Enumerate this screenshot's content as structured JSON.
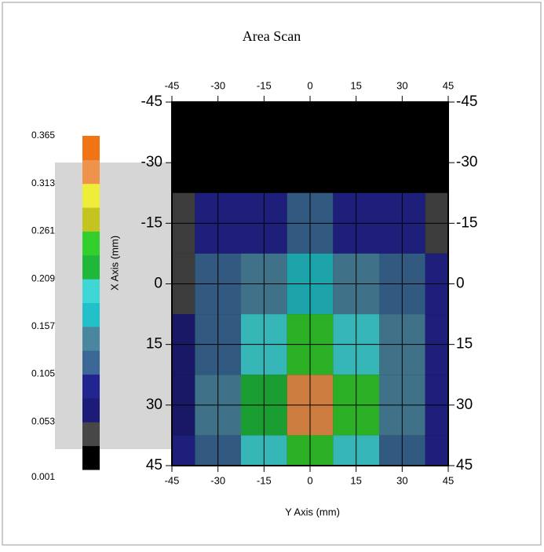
{
  "chart_data": {
    "type": "contour",
    "title": "Area Scan",
    "x_axis_label": "Y Axis (mm)",
    "y_axis_label": "X Axis (mm)",
    "xlim": [
      -45,
      45
    ],
    "xticks": [
      -45,
      -30,
      -15,
      0,
      15,
      30,
      45
    ],
    "ylim": [
      -45,
      45
    ],
    "yticks": [
      -45,
      -30,
      -15,
      0,
      15,
      30,
      45
    ],
    "y_inverted": true,
    "grid": true,
    "grid_x": [
      -45,
      -30,
      -15,
      0,
      15,
      30,
      45
    ],
    "grid_y": [
      -45,
      -30,
      -15,
      0,
      15,
      30,
      45
    ],
    "z": [
      [
        null,
        null,
        null,
        null,
        null,
        null,
        null
      ],
      [
        null,
        null,
        null,
        null,
        null,
        null,
        null
      ],
      [
        0.03,
        0.08,
        0.1,
        0.11,
        0.1,
        0.08,
        0.04
      ],
      [
        0.05,
        0.11,
        0.15,
        0.17,
        0.15,
        0.12,
        0.08
      ],
      [
        0.06,
        0.13,
        0.19,
        0.25,
        0.2,
        0.14,
        0.09
      ],
      [
        0.06,
        0.14,
        0.22,
        0.33,
        0.24,
        0.15,
        0.09
      ],
      [
        0.08,
        0.12,
        0.2,
        0.26,
        0.2,
        0.13,
        0.09
      ]
    ],
    "colorbar_levels": [
      0.001,
      0.053,
      0.105,
      0.157,
      0.209,
      0.261,
      0.313,
      0.365
    ],
    "colorbar_colors": [
      "#000000",
      "#474747",
      "#1c1c78",
      "#22248f",
      "#3b6896",
      "#4a86a0",
      "#22c0c8",
      "#3fd6d6",
      "#1fb83a",
      "#33cf2c",
      "#c4c420",
      "#eded3a",
      "#f0934a",
      "#f07414"
    ]
  }
}
